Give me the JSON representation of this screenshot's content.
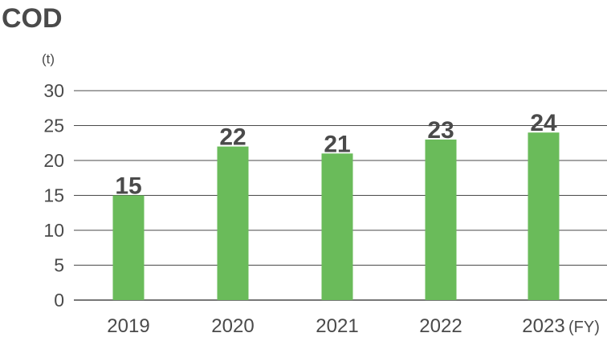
{
  "chart_data": {
    "type": "bar",
    "title": "COD",
    "y_unit": "(t)",
    "x_unit": "(FY)",
    "categories": [
      "2019",
      "2020",
      "2021",
      "2022",
      "2023"
    ],
    "values": [
      15,
      22,
      21,
      23,
      24
    ],
    "value_labels": [
      "15",
      "22",
      "21",
      "23",
      "24"
    ],
    "ylim": [
      0,
      30
    ],
    "yticks": [
      0,
      5,
      10,
      15,
      20,
      25,
      30
    ],
    "ytick_labels": [
      "0",
      "5",
      "10",
      "15",
      "20",
      "25",
      "30"
    ],
    "grid": true,
    "legend": "none",
    "colors": {
      "bar": "#6abb5a",
      "grid": "#4a4a4a",
      "text": "#4a4a4a"
    }
  }
}
